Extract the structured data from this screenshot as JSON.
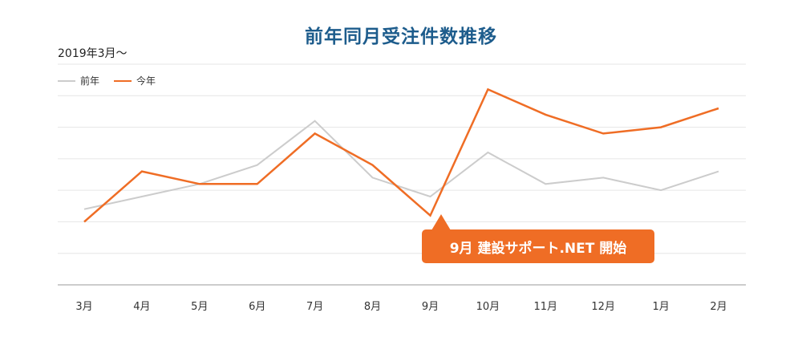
{
  "chart_data": {
    "type": "line",
    "title": "前年同月受注件数推移",
    "period_label": "2019年3月〜",
    "categories": [
      "3月",
      "4月",
      "5月",
      "6月",
      "7月",
      "8月",
      "9月",
      "10月",
      "11月",
      "12月",
      "1月",
      "2月"
    ],
    "series": [
      {
        "name": "前年",
        "color": "#cccccc",
        "values": [
          2.4,
          2.8,
          3.2,
          3.8,
          5.2,
          3.4,
          2.8,
          4.2,
          3.2,
          3.4,
          3.0,
          3.6
        ]
      },
      {
        "name": "今年",
        "color": "#ef6d25",
        "values": [
          2.0,
          3.6,
          3.2,
          3.2,
          4.8,
          3.8,
          2.2,
          6.2,
          5.4,
          4.8,
          5.0,
          5.6
        ]
      }
    ],
    "ylim": [
      0,
      7
    ],
    "grid": true,
    "legend_position": "top-left",
    "annotation": {
      "text": "9月 建設サポート.NET 開始",
      "category": "9月",
      "color": "#ef6d25"
    }
  }
}
